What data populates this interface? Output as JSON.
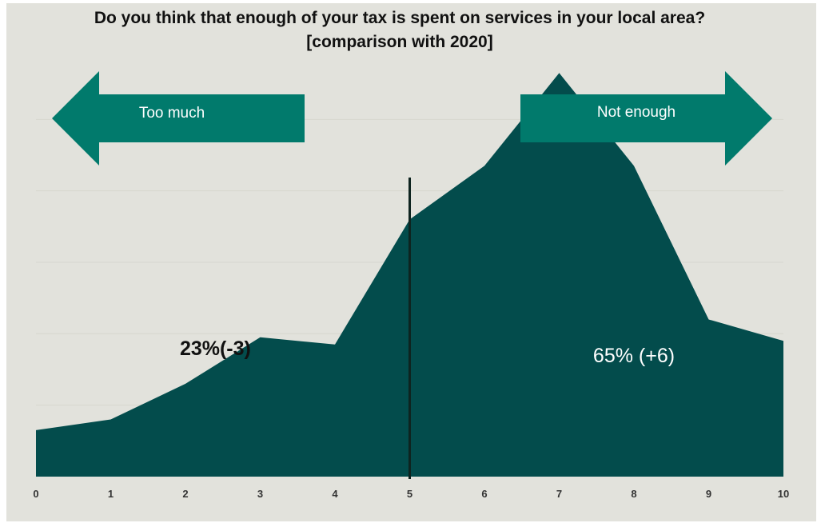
{
  "chart_data": {
    "type": "area",
    "title": "Do you think that enough of your tax is spent on services in your local area? [comparison with 2020]",
    "x": [
      0,
      1,
      2,
      3,
      4,
      5,
      6,
      7,
      8,
      9,
      10
    ],
    "series": [
      {
        "values": [
          6.5,
          8,
          13,
          19.5,
          18.5,
          36,
          43.5,
          56.5,
          43.5,
          22,
          19
        ]
      }
    ],
    "xlim": [
      0,
      10
    ],
    "ylim": [
      0,
      60
    ],
    "grid": true,
    "colors": {
      "area": "#034c4c",
      "arrow": "#017a6c",
      "divider": "#0e2420",
      "background": "#e2e2dc"
    },
    "divider_x": 5,
    "arrows": [
      {
        "label": "Too much",
        "direction": "left"
      },
      {
        "label": "Not enough",
        "direction": "right"
      }
    ],
    "annotations": [
      {
        "text": "23%(-3)",
        "x": 2.4,
        "y": 18
      },
      {
        "text": "65% (+6)",
        "x": 8.0,
        "y": 17
      }
    ]
  }
}
